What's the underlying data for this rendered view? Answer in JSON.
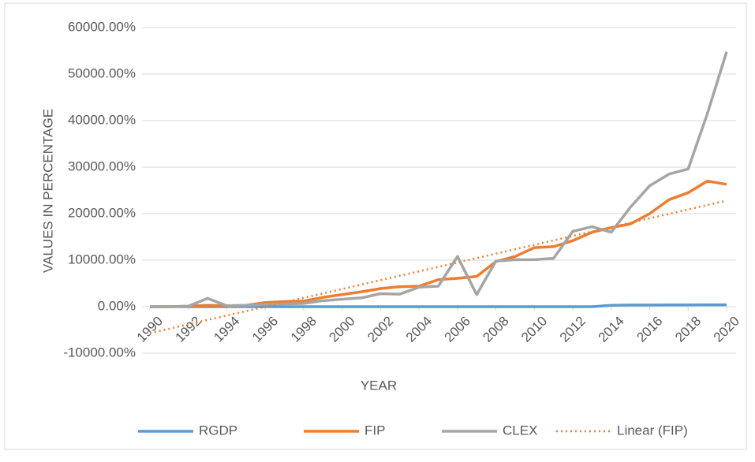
{
  "chart_data": {
    "type": "line",
    "x_label": "YEAR",
    "y_label": "VALUES IN PERCENTAGE",
    "x": [
      1990,
      1991,
      1992,
      1993,
      1994,
      1995,
      1996,
      1997,
      1998,
      1999,
      2000,
      2001,
      2002,
      2003,
      2004,
      2005,
      2006,
      2007,
      2008,
      2009,
      2010,
      2011,
      2012,
      2013,
      2014,
      2015,
      2016,
      2017,
      2018,
      2019,
      2020
    ],
    "xlim": [
      1990,
      2020
    ],
    "xticks": [
      1990,
      1992,
      1994,
      1996,
      1998,
      2000,
      2002,
      2004,
      2006,
      2008,
      2010,
      2012,
      2014,
      2016,
      2018,
      2020
    ],
    "ylim": [
      -10000,
      60000
    ],
    "yticks": [
      {
        "value": -10000,
        "label": "-10000.00%"
      },
      {
        "value": 0,
        "label": "0.00%"
      },
      {
        "value": 10000,
        "label": "10000.00%"
      },
      {
        "value": 20000,
        "label": "20000.00%"
      },
      {
        "value": 30000,
        "label": "30000.00%"
      },
      {
        "value": 40000,
        "label": "40000.00%"
      },
      {
        "value": 50000,
        "label": "50000.00%"
      },
      {
        "value": 60000,
        "label": "60000.00%"
      }
    ],
    "grid": true,
    "legend": "bottom",
    "series": [
      {
        "name": "RGDP",
        "color": "#5b9bd5",
        "values": [
          0,
          0,
          0,
          0,
          0,
          0,
          0,
          0,
          0,
          0,
          0,
          0,
          0,
          0,
          0,
          0,
          0,
          0,
          0,
          0,
          0,
          0,
          0,
          0,
          300,
          350,
          350,
          380,
          380,
          400,
          400
        ]
      },
      {
        "name": "FIP",
        "color": "#ed7d31",
        "values": [
          0,
          0,
          100,
          300,
          200,
          300,
          900,
          1100,
          1200,
          2000,
          2600,
          3200,
          3900,
          4300,
          4400,
          5800,
          6100,
          6500,
          9700,
          10800,
          12700,
          12900,
          14200,
          16000,
          17000,
          17800,
          20000,
          23000,
          24500,
          27000,
          26300
        ]
      },
      {
        "name": "CLEX",
        "color": "#a5a5a5",
        "values": [
          0,
          0,
          100,
          1800,
          200,
          300,
          500,
          600,
          700,
          1300,
          1600,
          1900,
          2800,
          2700,
          4200,
          4400,
          10800,
          2600,
          9800,
          10100,
          10100,
          10400,
          16200,
          17200,
          16000,
          21400,
          26000,
          28500,
          29600,
          41500,
          54800
        ]
      },
      {
        "name": "Linear (FIP)",
        "color": "#ed7d31",
        "dotted": true,
        "x": [
          1990,
          2020
        ],
        "values": [
          -5700,
          22800
        ]
      }
    ]
  }
}
